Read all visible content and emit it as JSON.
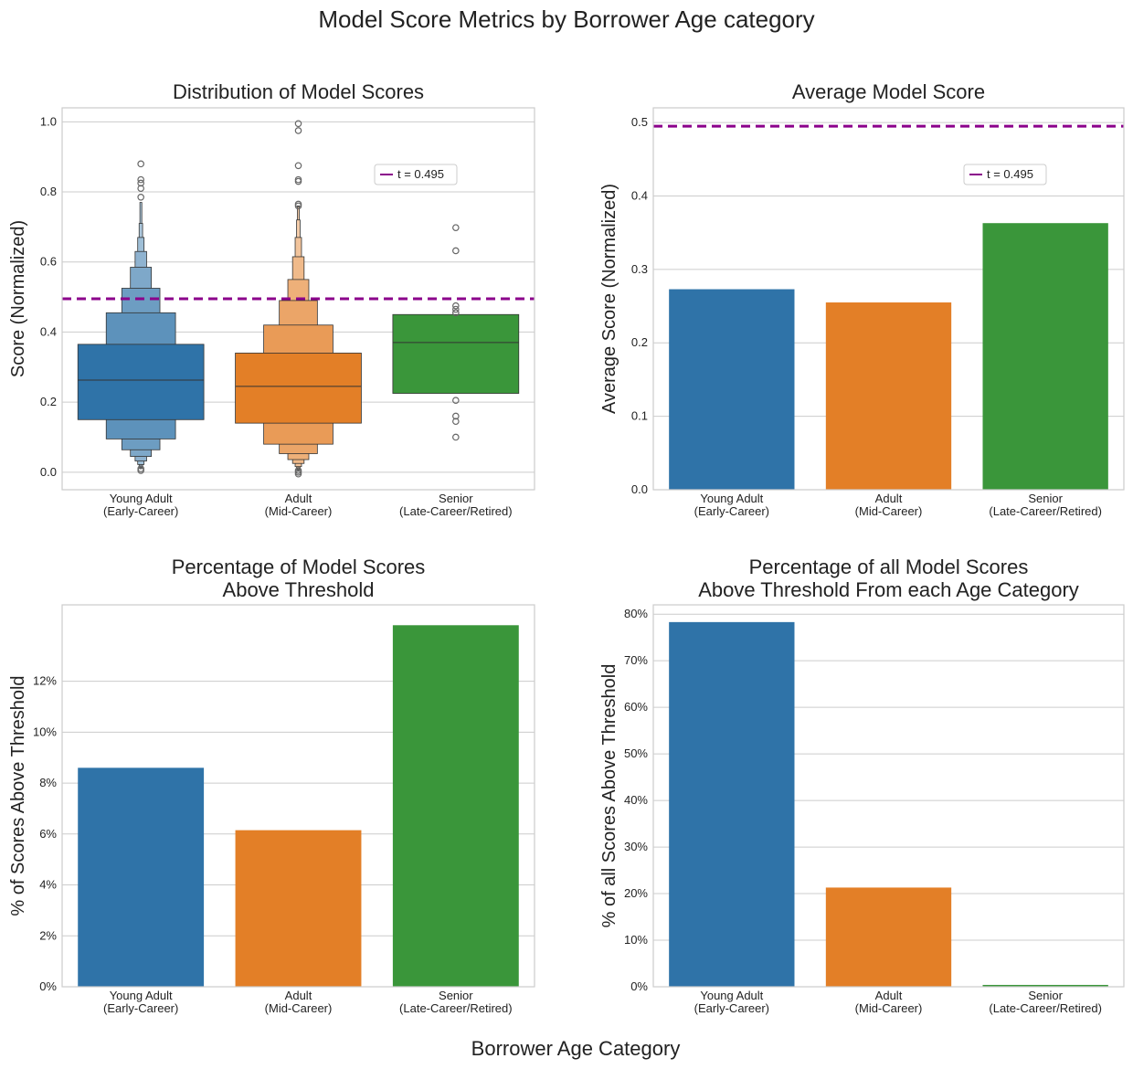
{
  "figure": {
    "title": "Model Score Metrics by Borrower Age category",
    "xlabel": "Borrower Age Category"
  },
  "colors": {
    "young": "#2f73a8",
    "adult": "#e37f27",
    "senior": "#3a963a",
    "threshold": "#8b008b",
    "grid": "#cccccc",
    "frame": "#cccccc"
  },
  "chart_data": [
    {
      "type": "boxen",
      "title": "Distribution of Model Scores",
      "ylabel": "Score (Normalized)",
      "categories": [
        "Young Adult\n(Early-Career)",
        "Adult\n(Mid-Career)",
        "Senior\n(Late-Career/Retired)"
      ],
      "ylim": [
        -0.05,
        1.04
      ],
      "yticks": [
        "0.0",
        "0.2",
        "0.4",
        "0.6",
        "0.8",
        "1.0"
      ],
      "legend": {
        "label": "t = 0.495",
        "position": "upper-right"
      },
      "threshold": 0.495,
      "grid": true,
      "series": [
        {
          "name": "Young Adult (Early-Career)",
          "median": 0.263,
          "boxes": [
            {
              "low": 0.15,
              "high": 0.365
            },
            {
              "low": 0.095,
              "high": 0.455
            },
            {
              "low": 0.064,
              "high": 0.525
            },
            {
              "low": 0.045,
              "high": 0.585
            },
            {
              "low": 0.032,
              "high": 0.63
            },
            {
              "low": 0.022,
              "high": 0.67
            },
            {
              "low": 0.015,
              "high": 0.71
            },
            {
              "low": 0.01,
              "high": 0.77
            }
          ],
          "outliers": [
            0.005,
            0.01,
            0.785,
            0.81,
            0.825,
            0.835,
            0.88
          ]
        },
        {
          "name": "Adult (Mid-Career)",
          "median": 0.245,
          "boxes": [
            {
              "low": 0.14,
              "high": 0.34
            },
            {
              "low": 0.08,
              "high": 0.42
            },
            {
              "low": 0.053,
              "high": 0.49
            },
            {
              "low": 0.036,
              "high": 0.55
            },
            {
              "low": 0.025,
              "high": 0.615
            },
            {
              "low": 0.016,
              "high": 0.67
            },
            {
              "low": 0.01,
              "high": 0.72
            },
            {
              "low": 0.006,
              "high": 0.76
            }
          ],
          "outliers": [
            -0.005,
            0.0,
            0.005,
            0.76,
            0.765,
            0.83,
            0.835,
            0.875,
            0.975,
            0.995
          ]
        },
        {
          "name": "Senior (Late-Career/Retired)",
          "median": 0.37,
          "boxes": [
            {
              "low": 0.225,
              "high": 0.45
            }
          ],
          "outliers": [
            0.1,
            0.145,
            0.16,
            0.205,
            0.455,
            0.465,
            0.475,
            0.632,
            0.698
          ]
        }
      ]
    },
    {
      "type": "bar",
      "title": "Average Model Score",
      "ylabel": "Average Score (Normalized)",
      "categories": [
        "Young Adult\n(Early-Career)",
        "Adult\n(Mid-Career)",
        "Senior\n(Late-Career/Retired)"
      ],
      "values": [
        0.273,
        0.255,
        0.363
      ],
      "ylim": [
        0,
        0.52
      ],
      "yticks": [
        "0.0",
        "0.1",
        "0.2",
        "0.3",
        "0.4",
        "0.5"
      ],
      "legend": {
        "label": "t = 0.495",
        "position": "upper-right"
      },
      "threshold": 0.495,
      "grid": true
    },
    {
      "type": "bar",
      "title": "Percentage of Model Scores\nAbove Threshold",
      "ylabel": "% of Scores Above Threshold",
      "categories": [
        "Young Adult\n(Early-Career)",
        "Adult\n(Mid-Career)",
        "Senior\n(Late-Career/Retired)"
      ],
      "values": [
        8.6,
        6.15,
        14.2
      ],
      "ylim": [
        0,
        15
      ],
      "yticks": [
        "0%",
        "2%",
        "4%",
        "6%",
        "8%",
        "10%",
        "12%"
      ],
      "grid": true
    },
    {
      "type": "bar",
      "title": "Percentage of all Model Scores\nAbove Threshold From each Age Category",
      "ylabel": "% of all Scores Above Threshold",
      "categories": [
        "Young Adult\n(Early-Career)",
        "Adult\n(Mid-Career)",
        "Senior\n(Late-Career/Retired)"
      ],
      "values": [
        78.3,
        21.3,
        0.4
      ],
      "ylim": [
        0,
        82
      ],
      "yticks": [
        "0%",
        "10%",
        "20%",
        "30%",
        "40%",
        "50%",
        "60%",
        "70%",
        "80%"
      ],
      "grid": true
    }
  ]
}
